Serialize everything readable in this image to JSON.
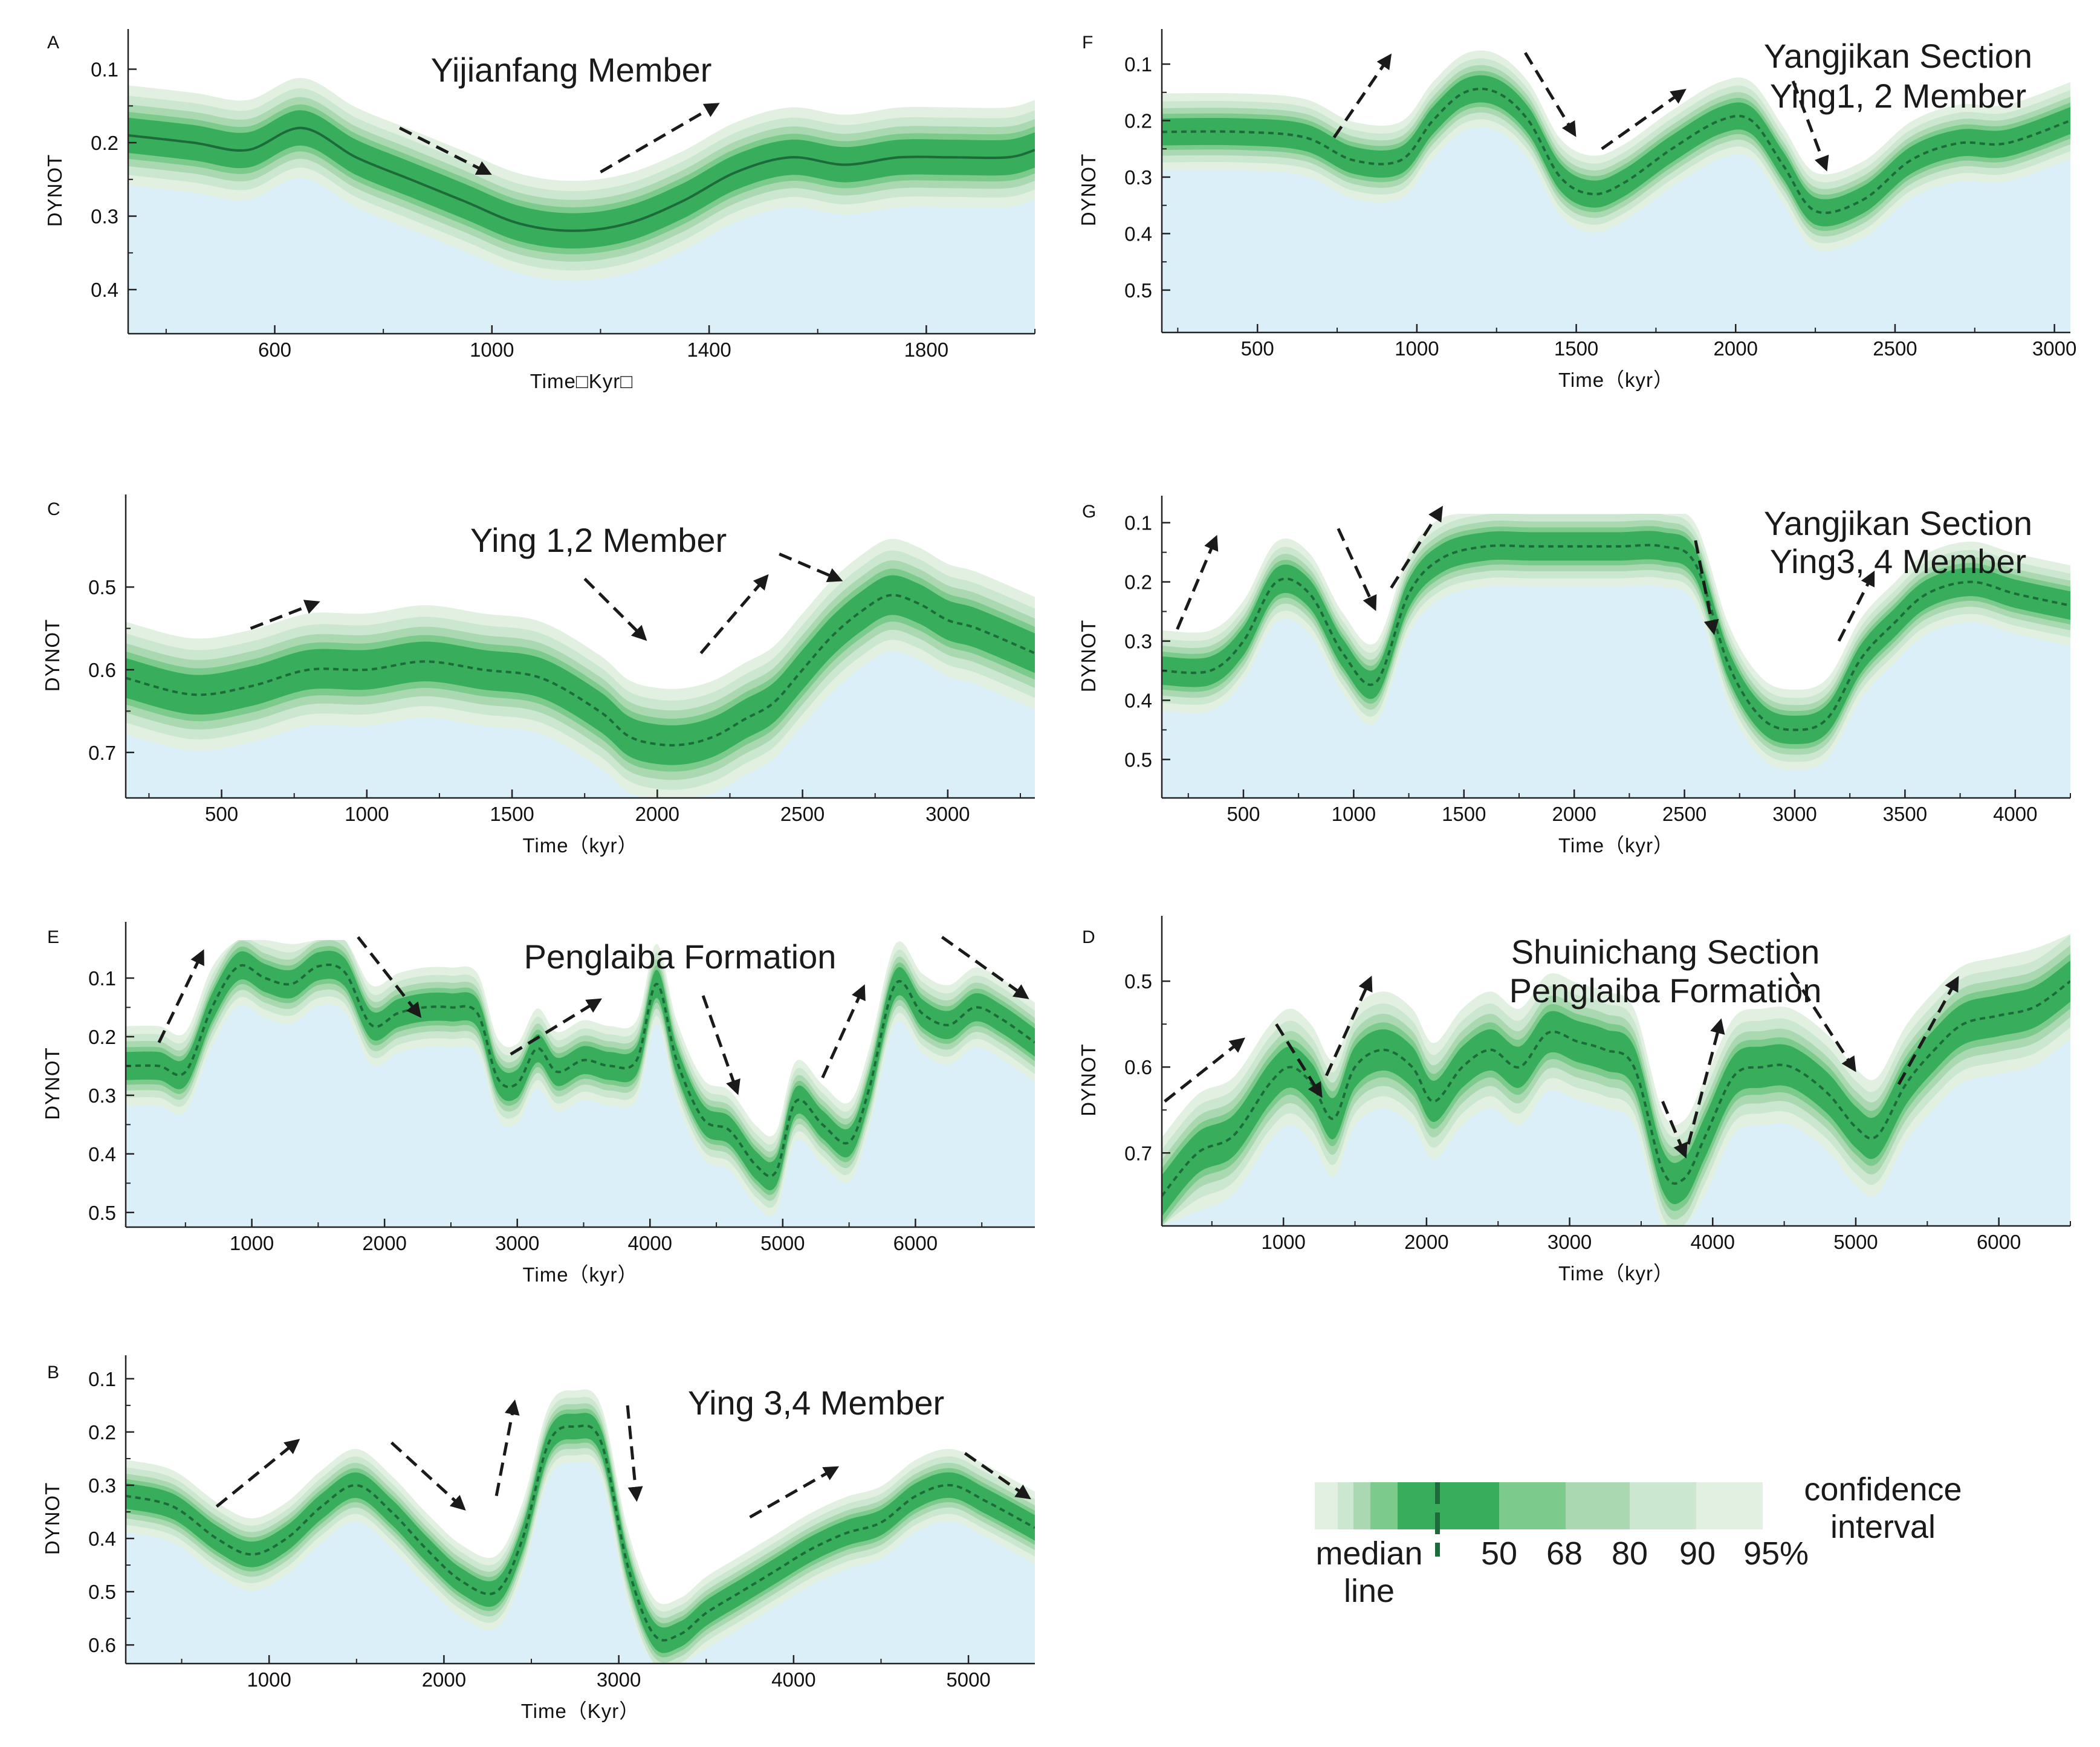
{
  "colors": {
    "band95": "#e2f0e2",
    "band90": "#cbe7cf",
    "band80": "#a9d8b1",
    "band68": "#7ccb8d",
    "band50": "#38ad5b",
    "median": "#1d6b3a",
    "fill": "#dbeff9",
    "axis": "#222222",
    "arrow": "#1a1a1a"
  },
  "chart_data": [
    {
      "id": "A",
      "letter": "A",
      "type": "area",
      "title": "Yijianfang Member",
      "xlabel": "Time□Kyr□",
      "ylabel": "DYNOT",
      "xlim": [
        330,
        2000
      ],
      "ylim": [
        0.07,
        0.46
      ],
      "xticks": [
        600,
        1000,
        1400,
        1800
      ],
      "yticks": [
        0.1,
        0.2,
        0.3,
        0.4
      ],
      "dashed": false,
      "x": [
        330,
        450,
        550,
        650,
        750,
        850,
        950,
        1050,
        1150,
        1250,
        1350,
        1450,
        1550,
        1650,
        1750,
        1850,
        1950,
        2000
      ],
      "median": [
        0.19,
        0.2,
        0.21,
        0.18,
        0.22,
        0.25,
        0.28,
        0.31,
        0.32,
        0.31,
        0.28,
        0.24,
        0.22,
        0.23,
        0.22,
        0.22,
        0.22,
        0.21
      ],
      "arrows": [
        [
          830,
          0.18,
          990,
          0.24
        ],
        [
          1200,
          0.24,
          1410,
          0.15
        ]
      ]
    },
    {
      "id": "C",
      "letter": "C",
      "type": "area",
      "title": "Ying 1,2 Member",
      "xlabel": "Time（kyr）",
      "ylabel": "DYNOT",
      "xlim": [
        170,
        3300
      ],
      "ylim": [
        0.41,
        0.755
      ],
      "xticks": [
        500,
        1000,
        1500,
        2000,
        2500,
        3000
      ],
      "yticks": [
        0.5,
        0.6,
        0.7
      ],
      "dashed": true,
      "x": [
        170,
        400,
        600,
        800,
        1000,
        1200,
        1400,
        1600,
        1800,
        1900,
        2000,
        2100,
        2200,
        2300,
        2400,
        2500,
        2600,
        2700,
        2800,
        2900,
        3000,
        3100,
        3300
      ],
      "median": [
        0.61,
        0.63,
        0.62,
        0.6,
        0.6,
        0.59,
        0.6,
        0.61,
        0.65,
        0.68,
        0.69,
        0.69,
        0.68,
        0.66,
        0.64,
        0.6,
        0.56,
        0.53,
        0.51,
        0.52,
        0.54,
        0.55,
        0.58
      ],
      "arrows": [
        [
          600,
          0.55,
          820,
          0.52
        ],
        [
          1750,
          0.49,
          1950,
          0.56
        ],
        [
          2150,
          0.58,
          2370,
          0.49
        ],
        [
          2420,
          0.46,
          2620,
          0.49
        ]
      ]
    },
    {
      "id": "E",
      "letter": "E",
      "type": "area",
      "title": "Penglaiba Formation",
      "xlabel": "Time（kyr）",
      "ylabel": "DYNOT",
      "xlim": [
        50,
        6900
      ],
      "ylim": [
        0.035,
        0.525
      ],
      "xticks": [
        1000,
        2000,
        3000,
        4000,
        5000,
        6000
      ],
      "yticks": [
        0.1,
        0.2,
        0.3,
        0.4,
        0.5
      ],
      "dashed": true,
      "x": [
        50,
        300,
        500,
        700,
        900,
        1100,
        1300,
        1500,
        1700,
        1900,
        2100,
        2300,
        2500,
        2700,
        2850,
        3000,
        3150,
        3300,
        3500,
        3700,
        3900,
        4050,
        4200,
        4400,
        4600,
        4800,
        4950,
        5100,
        5300,
        5500,
        5650,
        5850,
        6050,
        6250,
        6450,
        6650,
        6900
      ],
      "median": [
        0.25,
        0.25,
        0.26,
        0.15,
        0.08,
        0.1,
        0.11,
        0.08,
        0.09,
        0.18,
        0.16,
        0.15,
        0.15,
        0.16,
        0.27,
        0.28,
        0.22,
        0.26,
        0.24,
        0.25,
        0.24,
        0.11,
        0.24,
        0.34,
        0.36,
        0.42,
        0.43,
        0.31,
        0.35,
        0.38,
        0.29,
        0.11,
        0.16,
        0.18,
        0.15,
        0.17,
        0.21
      ],
      "arrows": [
        [
          300,
          0.21,
          620,
          0.06
        ],
        [
          1800,
          0.03,
          2250,
          0.16
        ],
        [
          2950,
          0.23,
          3600,
          0.14
        ],
        [
          4400,
          0.13,
          4650,
          0.29
        ],
        [
          5300,
          0.27,
          5600,
          0.12
        ],
        [
          6200,
          0.03,
          6820,
          0.13
        ]
      ]
    },
    {
      "id": "B",
      "letter": "B",
      "type": "area",
      "title": "Ying 3,4 Member",
      "xlabel": "Time（Kyr）",
      "ylabel": "DYNOT",
      "xlim": [
        180,
        5380
      ],
      "ylim": [
        0.09,
        0.635
      ],
      "xticks": [
        1000,
        2000,
        3000,
        4000,
        5000
      ],
      "yticks": [
        0.1,
        0.2,
        0.3,
        0.4,
        0.5,
        0.6
      ],
      "dashed": true,
      "x": [
        180,
        450,
        700,
        900,
        1100,
        1300,
        1500,
        1700,
        1900,
        2100,
        2300,
        2450,
        2600,
        2750,
        2900,
        3050,
        3200,
        3350,
        3500,
        3700,
        3900,
        4100,
        4300,
        4500,
        4700,
        4900,
        5100,
        5380
      ],
      "median": [
        0.32,
        0.34,
        0.4,
        0.43,
        0.4,
        0.34,
        0.3,
        0.35,
        0.42,
        0.48,
        0.5,
        0.4,
        0.22,
        0.19,
        0.22,
        0.45,
        0.58,
        0.58,
        0.54,
        0.5,
        0.46,
        0.42,
        0.39,
        0.37,
        0.32,
        0.3,
        0.33,
        0.38
      ],
      "arrows": [
        [
          700,
          0.34,
          1150,
          0.22
        ],
        [
          1700,
          0.22,
          2100,
          0.34
        ],
        [
          2300,
          0.32,
          2400,
          0.15
        ],
        [
          3050,
          0.15,
          3100,
          0.32
        ],
        [
          3750,
          0.36,
          4230,
          0.27
        ],
        [
          4980,
          0.24,
          5330,
          0.32
        ]
      ]
    },
    {
      "id": "F",
      "letter": "F",
      "type": "area",
      "title": "Yangjikan Section",
      "subtitle": "Ying1, 2  Member",
      "xlabel": "Time（kyr）",
      "ylabel": "DYNOT",
      "xlim": [
        200,
        3050
      ],
      "ylim": [
        0.07,
        0.575
      ],
      "xticks": [
        500,
        1000,
        1500,
        2000,
        2500,
        3000
      ],
      "yticks": [
        0.1,
        0.2,
        0.3,
        0.4,
        0.5
      ],
      "dashed": true,
      "x": [
        200,
        450,
        650,
        800,
        950,
        1050,
        1150,
        1250,
        1350,
        1450,
        1550,
        1650,
        1800,
        1950,
        2050,
        2150,
        2250,
        2400,
        2550,
        2700,
        2850,
        3050
      ],
      "median": [
        0.22,
        0.22,
        0.23,
        0.27,
        0.27,
        0.2,
        0.15,
        0.15,
        0.2,
        0.3,
        0.33,
        0.31,
        0.25,
        0.2,
        0.2,
        0.28,
        0.36,
        0.34,
        0.27,
        0.24,
        0.24,
        0.2
      ],
      "arrows": [
        [
          740,
          0.23,
          910,
          0.09
        ],
        [
          1340,
          0.08,
          1490,
          0.22
        ],
        [
          1580,
          0.25,
          1830,
          0.15
        ],
        [
          2180,
          0.13,
          2280,
          0.28
        ]
      ]
    },
    {
      "id": "G",
      "letter": "G",
      "type": "area",
      "title": "Yangjikan Section",
      "subtitle": "Ying3, 4  Member",
      "xlabel": "Time（kyr）",
      "ylabel": "DYNOT",
      "xlim": [
        130,
        4250
      ],
      "ylim": [
        0.085,
        0.565
      ],
      "xticks": [
        500,
        1000,
        1500,
        2000,
        2500,
        3000,
        3500,
        4000
      ],
      "yticks": [
        0.1,
        0.2,
        0.3,
        0.4,
        0.5
      ],
      "dashed": true,
      "x": [
        130,
        350,
        500,
        650,
        800,
        950,
        1100,
        1250,
        1400,
        1600,
        1800,
        2000,
        2200,
        2400,
        2550,
        2700,
        2850,
        3000,
        3150,
        3300,
        3450,
        3600,
        3800,
        4000,
        4250
      ],
      "median": [
        0.35,
        0.35,
        0.3,
        0.2,
        0.22,
        0.32,
        0.37,
        0.22,
        0.16,
        0.14,
        0.14,
        0.14,
        0.14,
        0.14,
        0.17,
        0.34,
        0.43,
        0.45,
        0.43,
        0.33,
        0.27,
        0.22,
        0.2,
        0.22,
        0.24
      ],
      "arrows": [
        [
          200,
          0.28,
          370,
          0.13
        ],
        [
          930,
          0.11,
          1090,
          0.24
        ],
        [
          1170,
          0.21,
          1390,
          0.08
        ],
        [
          2550,
          0.13,
          2630,
          0.28
        ],
        [
          3200,
          0.3,
          3350,
          0.19
        ]
      ]
    },
    {
      "id": "D",
      "letter": "D",
      "type": "area",
      "title": "Shuinichang  Section",
      "subtitle": "Penglaiba Formation",
      "xlabel": "Time（kyr）",
      "ylabel": "DYNOT",
      "xlim": [
        150,
        6500
      ],
      "ylim": [
        0.445,
        0.785
      ],
      "xticks": [
        1000,
        2000,
        3000,
        4000,
        5000,
        6000
      ],
      "yticks": [
        0.5,
        0.6,
        0.7
      ],
      "dashed": true,
      "x": [
        150,
        400,
        650,
        900,
        1050,
        1200,
        1350,
        1500,
        1700,
        1900,
        2050,
        2250,
        2450,
        2650,
        2850,
        3050,
        3250,
        3450,
        3650,
        3800,
        3950,
        4150,
        4350,
        4550,
        4800,
        5000,
        5150,
        5350,
        5550,
        5750,
        6000,
        6250,
        6500
      ],
      "median": [
        0.75,
        0.7,
        0.68,
        0.62,
        0.6,
        0.62,
        0.66,
        0.6,
        0.58,
        0.6,
        0.64,
        0.6,
        0.58,
        0.6,
        0.56,
        0.57,
        0.58,
        0.6,
        0.72,
        0.73,
        0.68,
        0.61,
        0.6,
        0.6,
        0.63,
        0.67,
        0.68,
        0.62,
        0.58,
        0.55,
        0.54,
        0.53,
        0.5
      ],
      "arrows": [
        [
          170,
          0.64,
          700,
          0.57
        ],
        [
          950,
          0.55,
          1250,
          0.63
        ],
        [
          1300,
          0.61,
          1600,
          0.5
        ],
        [
          3650,
          0.64,
          3800,
          0.7
        ],
        [
          3830,
          0.69,
          4050,
          0.55
        ],
        [
          4550,
          0.49,
          4980,
          0.6
        ],
        [
          5300,
          0.62,
          5700,
          0.5
        ]
      ]
    }
  ],
  "legend": {
    "title_line1": "confidence",
    "title_line2": "interval",
    "median_line1": "median",
    "median_line2": "line",
    "levels": [
      "50",
      "68",
      "80",
      "90",
      "95%"
    ]
  }
}
